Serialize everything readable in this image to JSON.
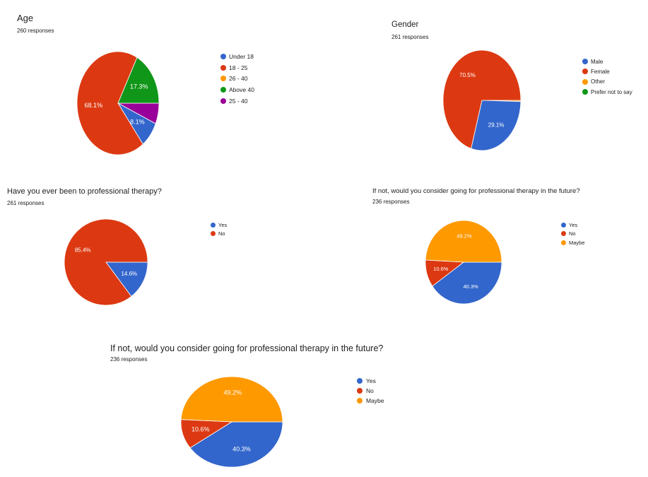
{
  "chart_data": [
    {
      "type": "pie",
      "title": "Age",
      "subtitle": "260 responses",
      "legend_position": "right",
      "start_angle_deg": 90,
      "direction": "clockwise",
      "categories": [
        "Under 18",
        "18 - 25",
        "26 - 40",
        "Above 40",
        "25 - 40"
      ],
      "colors": [
        "#3366cc",
        "#dc3912",
        "#ff9900",
        "#109618",
        "#990099"
      ],
      "slices": [
        {
          "name": "25 - 40",
          "value": 6.5,
          "color": "#990099",
          "label": ""
        },
        {
          "name": "Under 18",
          "value": 8.1,
          "color": "#3366cc",
          "label": "8.1%"
        },
        {
          "name": "18 - 25",
          "value": 68.1,
          "color": "#dc3912",
          "label": "68.1%"
        },
        {
          "name": "Above 40",
          "value": 17.3,
          "color": "#109618",
          "label": "17.3%"
        }
      ]
    },
    {
      "type": "pie",
      "title": "Gender",
      "subtitle": "261 responses",
      "legend_position": "right",
      "start_angle_deg": 90,
      "direction": "clockwise",
      "categories": [
        "Male",
        "Female",
        "Other",
        "Prefer not to say"
      ],
      "colors": [
        "#3366cc",
        "#dc3912",
        "#ff9900",
        "#109618"
      ],
      "slices": [
        {
          "name": "Other",
          "value": 0.4,
          "color": "#ff9900",
          "label": ""
        },
        {
          "name": "Male",
          "value": 29.1,
          "color": "#3366cc",
          "label": "29.1%"
        },
        {
          "name": "Female",
          "value": 70.5,
          "color": "#dc3912",
          "label": "70.5%"
        }
      ]
    },
    {
      "type": "pie",
      "title": "Have you ever been to professional therapy?",
      "subtitle": "261 responses",
      "legend_position": "right",
      "start_angle_deg": 90,
      "direction": "clockwise",
      "categories": [
        "Yes",
        "No"
      ],
      "colors": [
        "#3366cc",
        "#dc3912"
      ],
      "slices": [
        {
          "name": "Yes",
          "value": 14.6,
          "color": "#3366cc",
          "label": "14.6%"
        },
        {
          "name": "No",
          "value": 85.4,
          "color": "#dc3912",
          "label": "85.4%"
        }
      ]
    },
    {
      "type": "pie",
      "title": "If not, would you consider going for professional therapy in the future?",
      "subtitle": "236 responses",
      "legend_position": "right",
      "start_angle_deg": 90,
      "direction": "clockwise",
      "categories": [
        "Yes",
        "No",
        "Maybe"
      ],
      "colors": [
        "#3366cc",
        "#dc3912",
        "#ff9900"
      ],
      "slices": [
        {
          "name": "Yes",
          "value": 40.3,
          "color": "#3366cc",
          "label": "40.3%"
        },
        {
          "name": "No",
          "value": 10.6,
          "color": "#dc3912",
          "label": "10.6%"
        },
        {
          "name": "Maybe",
          "value": 49.2,
          "color": "#ff9900",
          "label": "49.2%"
        }
      ]
    },
    {
      "type": "pie",
      "title": "If not, would you consider going for professional therapy in the future?",
      "subtitle": "236 responses",
      "legend_position": "right",
      "start_angle_deg": 90,
      "direction": "clockwise",
      "categories": [
        "Yes",
        "No",
        "Maybe"
      ],
      "colors": [
        "#3366cc",
        "#dc3912",
        "#ff9900"
      ],
      "slices": [
        {
          "name": "Yes",
          "value": 40.3,
          "color": "#3366cc",
          "label": "40.3%"
        },
        {
          "name": "No",
          "value": 10.6,
          "color": "#dc3912",
          "label": "10.6%"
        },
        {
          "name": "Maybe",
          "value": 49.2,
          "color": "#ff9900",
          "label": "49.2%"
        }
      ]
    }
  ]
}
